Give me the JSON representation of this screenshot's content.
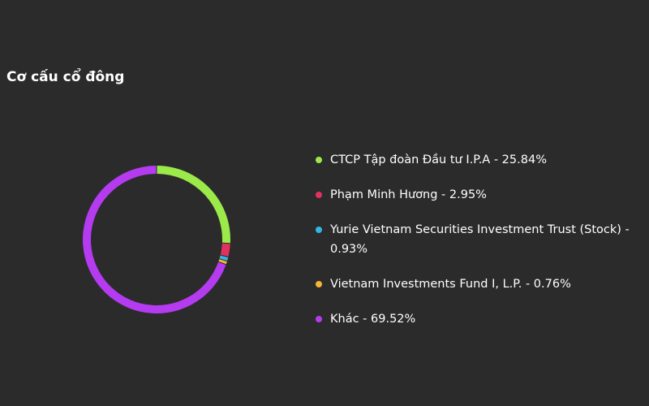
{
  "header": {
    "title": "Cơ cấu cổ đông"
  },
  "chart_data": {
    "type": "pie",
    "variant": "donut",
    "title": "Cơ cấu cổ đông",
    "legend_placement": "right",
    "slices": [
      {
        "name": "CTCP Tập đoàn Đầu tư I.P.A",
        "value": 25.84,
        "label": "CTCP Tập đoàn Đầu tư I.P.A - 25.84%",
        "color": "#9bea4a"
      },
      {
        "name": "Phạm Minh Hương",
        "value": 2.95,
        "label": "Phạm Minh Hương - 2.95%",
        "color": "#e0325f"
      },
      {
        "name": "Yurie Vietnam Securities Investment Trust (Stock)",
        "value": 0.93,
        "label": "Yurie Vietnam Securities Investment Trust (Stock) - 0.93%",
        "color": "#33b5e5"
      },
      {
        "name": "Vietnam Investments Fund I, L.P.",
        "value": 0.76,
        "label": "Vietnam Investments Fund I, L.P. - 0.76%",
        "color": "#f7b538"
      },
      {
        "name": "Khác",
        "value": 69.52,
        "label": "Khác - 69.52%",
        "color": "#b53bf0"
      }
    ]
  }
}
